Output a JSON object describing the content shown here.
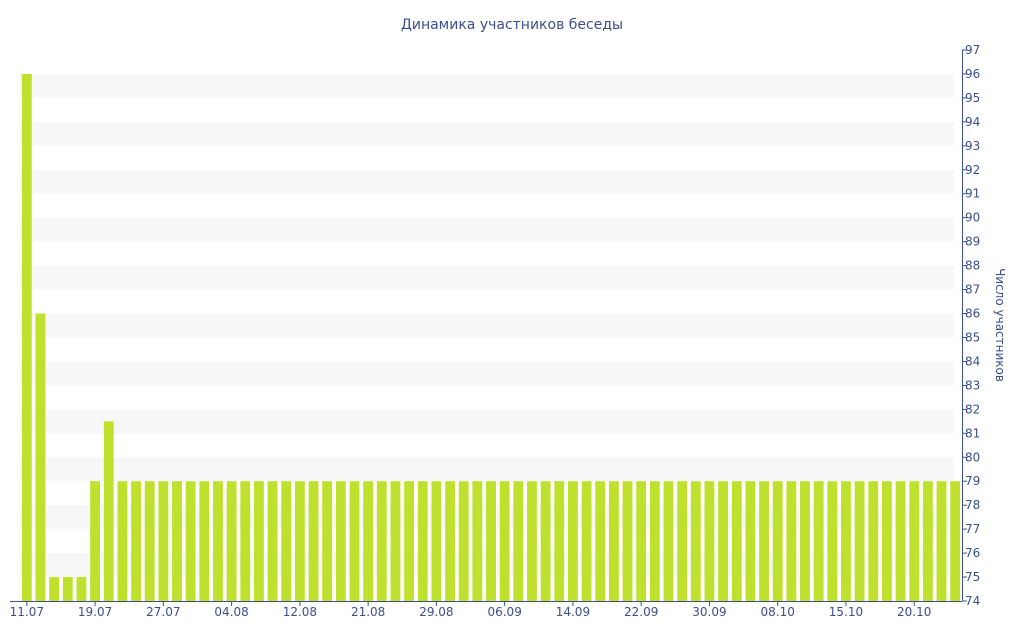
{
  "chart_data": {
    "type": "bar",
    "title": "Динамика участников беседы",
    "ylabel": "Число участников",
    "xlabel": "",
    "ylim": [
      74,
      97
    ],
    "y_axis_side": "right",
    "yticks": [
      74,
      75,
      76,
      77,
      78,
      79,
      80,
      81,
      82,
      83,
      84,
      85,
      86,
      87,
      88,
      89,
      90,
      91,
      92,
      93,
      94,
      95,
      96,
      97
    ],
    "x_tick_labels": [
      {
        "index": 0,
        "label": "11.07"
      },
      {
        "index": 5,
        "label": "19.07"
      },
      {
        "index": 10,
        "label": "27.07"
      },
      {
        "index": 15,
        "label": "04.08"
      },
      {
        "index": 20,
        "label": "12.08"
      },
      {
        "index": 25,
        "label": "21.08"
      },
      {
        "index": 30,
        "label": "29.08"
      },
      {
        "index": 35,
        "label": "06.09"
      },
      {
        "index": 40,
        "label": "14.09"
      },
      {
        "index": 45,
        "label": "22.09"
      },
      {
        "index": 50,
        "label": "30.09"
      },
      {
        "index": 55,
        "label": "08.10"
      },
      {
        "index": 60,
        "label": "15.10"
      },
      {
        "index": 65,
        "label": "20.10"
      }
    ],
    "values": [
      96,
      86,
      75,
      75,
      75,
      79,
      81.5,
      79,
      79,
      79,
      79,
      79,
      79,
      79,
      79,
      79,
      79,
      79,
      79,
      79,
      79,
      79,
      79,
      79,
      79,
      79,
      79,
      79,
      79,
      79,
      79,
      79,
      79,
      79,
      79,
      79,
      79,
      79,
      79,
      79,
      79,
      79,
      79,
      79,
      79,
      79,
      79,
      79,
      79,
      79,
      79,
      79,
      79,
      79,
      79,
      79,
      79,
      79,
      79,
      79,
      79,
      79,
      79,
      79,
      79,
      79,
      79,
      79,
      79
    ],
    "grid": "alternating-bands",
    "colors": {
      "bar": "#bfe02c",
      "band": "#f7f7f7",
      "axis": "#3b4f8f",
      "text": "#3b4f8f"
    }
  }
}
